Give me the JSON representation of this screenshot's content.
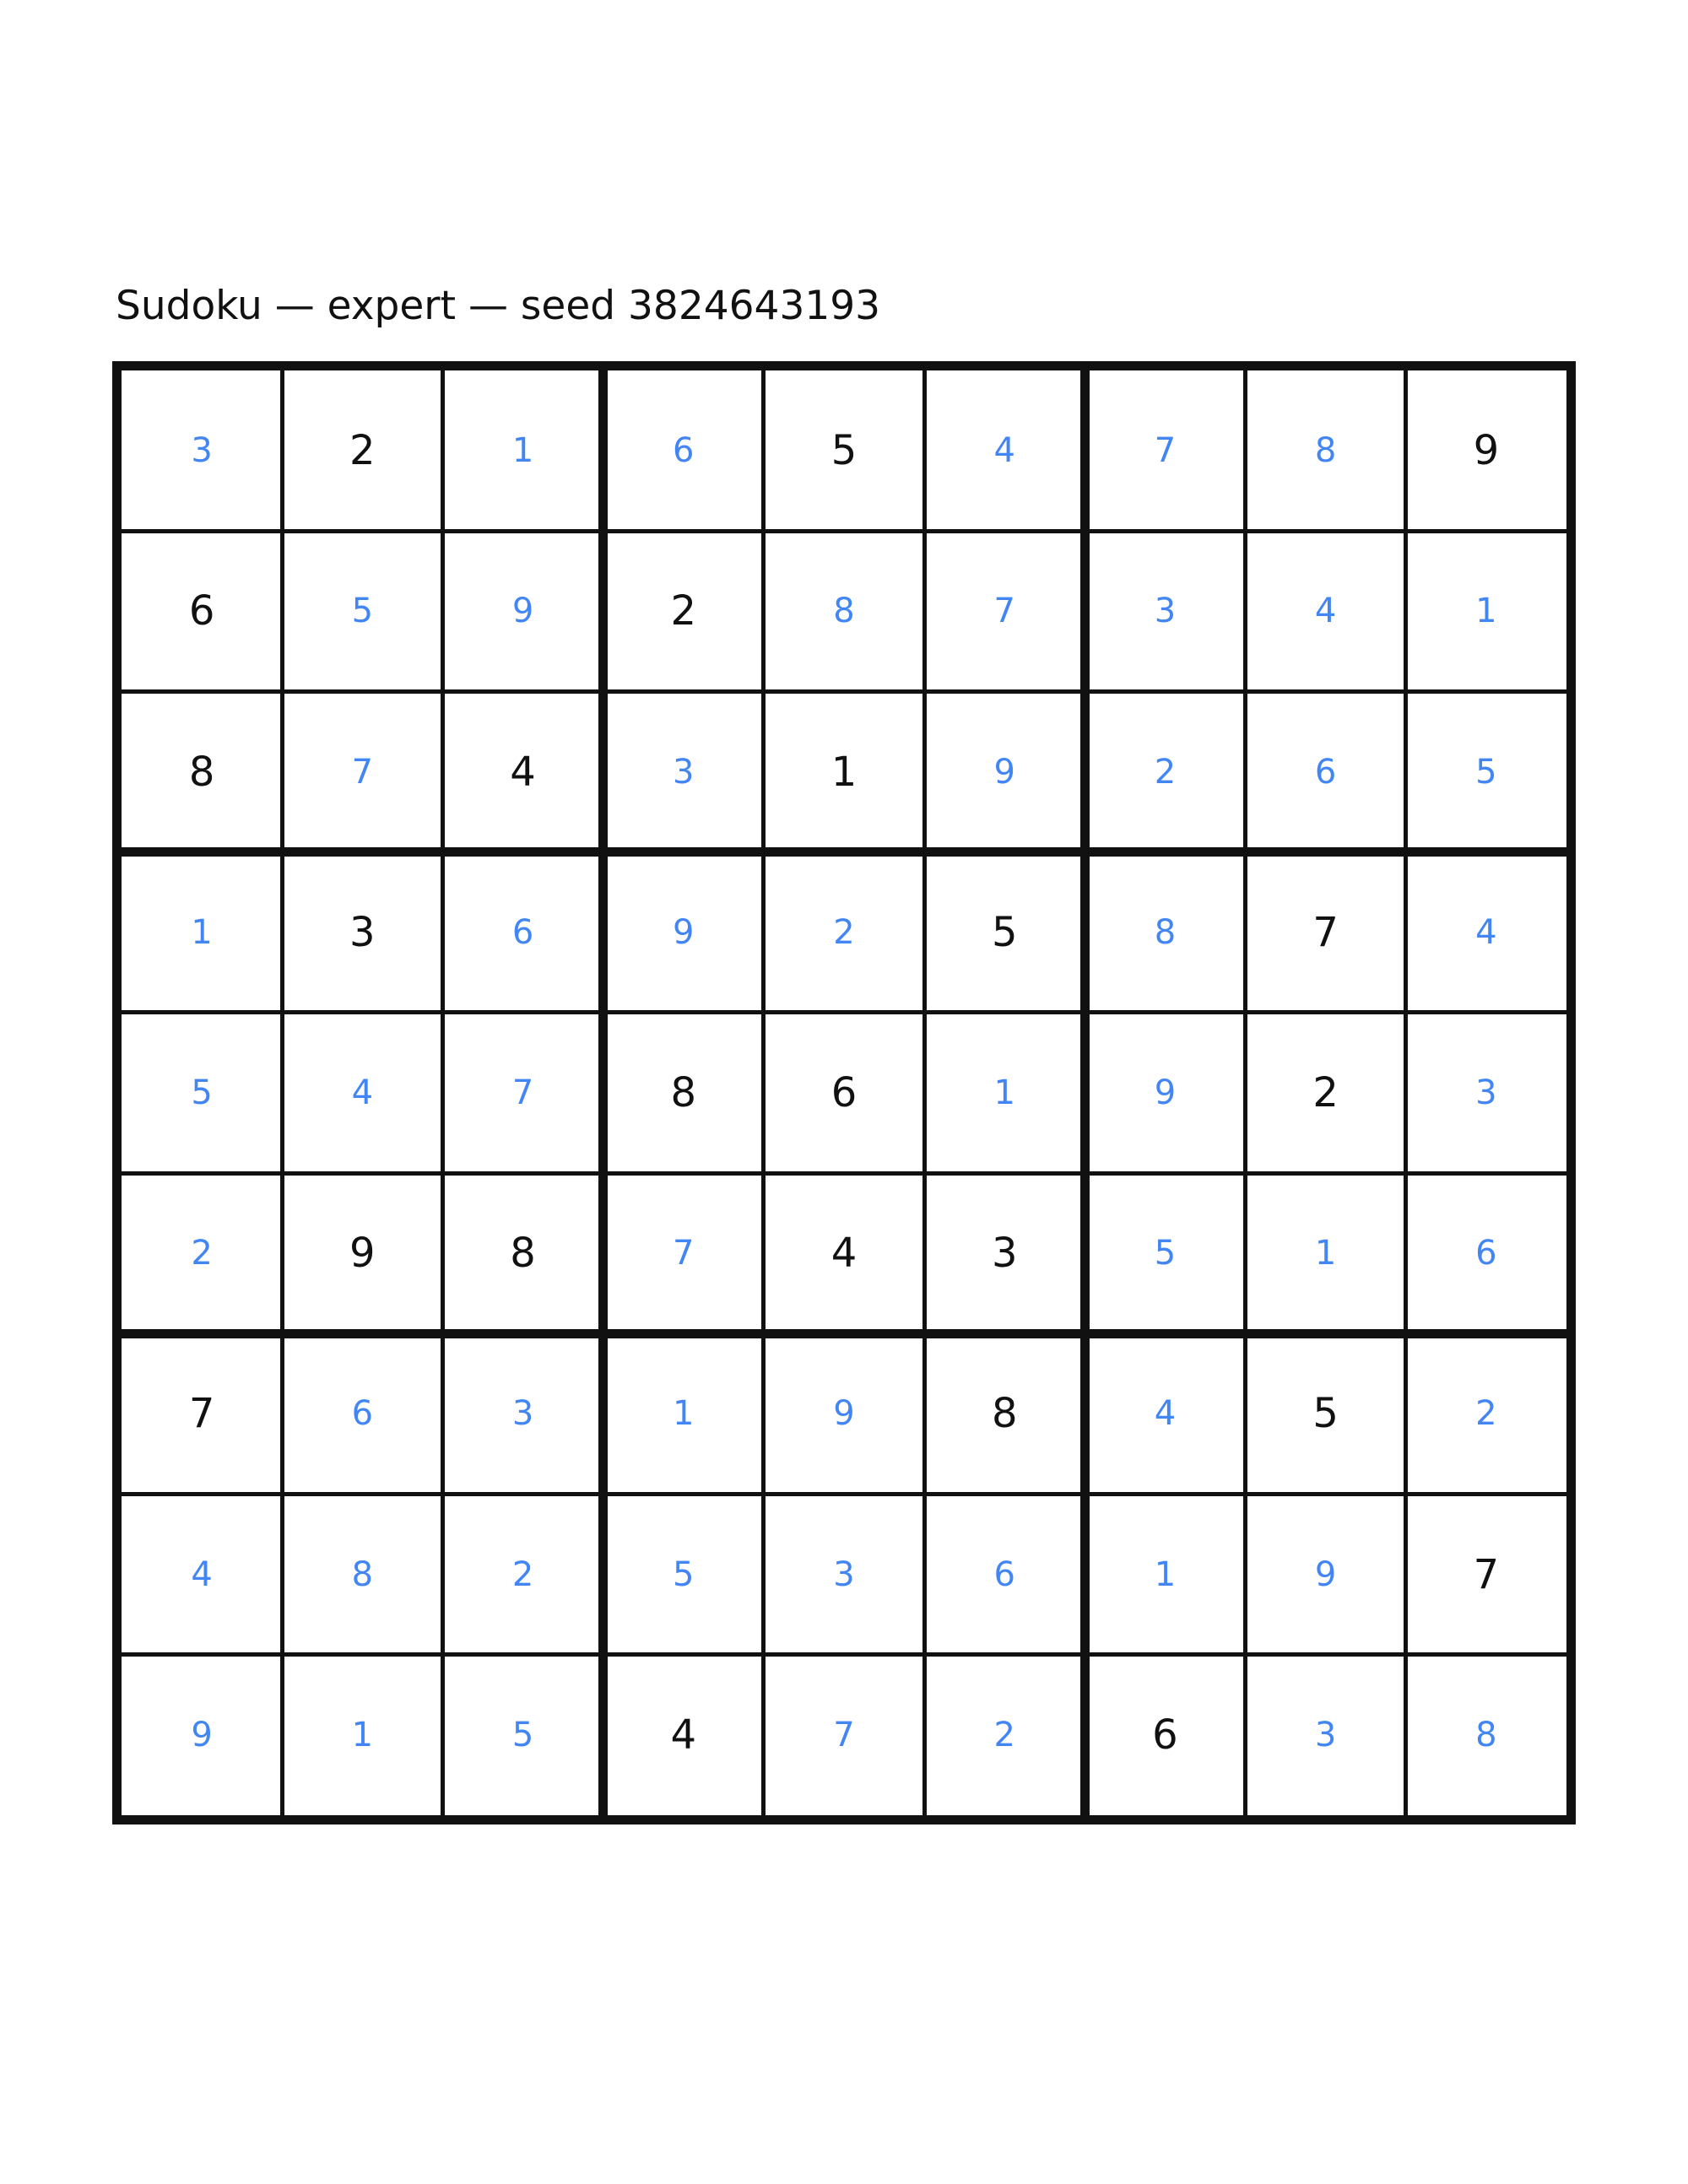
{
  "page": {
    "title": "Sudoku — expert — seed 3824643193"
  },
  "puzzle": {
    "name": "Sudoku",
    "difficulty": "expert",
    "seed": "3824643193"
  },
  "colors": {
    "background": "#ffffff",
    "grid_line": "#111111",
    "given_digit": "#111111",
    "solved_digit": "#4285f4"
  },
  "board": {
    "rows_count": 9,
    "cols_count": 9,
    "rows": [
      {
        "values": [
          "3",
          "2",
          "1",
          "6",
          "5",
          "4",
          "7",
          "8",
          "9"
        ],
        "given": [
          false,
          true,
          false,
          false,
          true,
          false,
          false,
          false,
          true
        ]
      },
      {
        "values": [
          "6",
          "5",
          "9",
          "2",
          "8",
          "7",
          "3",
          "4",
          "1"
        ],
        "given": [
          true,
          false,
          false,
          true,
          false,
          false,
          false,
          false,
          false
        ]
      },
      {
        "values": [
          "8",
          "7",
          "4",
          "3",
          "1",
          "9",
          "2",
          "6",
          "5"
        ],
        "given": [
          true,
          false,
          true,
          false,
          true,
          false,
          false,
          false,
          false
        ]
      },
      {
        "values": [
          "1",
          "3",
          "6",
          "9",
          "2",
          "5",
          "8",
          "7",
          "4"
        ],
        "given": [
          false,
          true,
          false,
          false,
          false,
          true,
          false,
          true,
          false
        ]
      },
      {
        "values": [
          "5",
          "4",
          "7",
          "8",
          "6",
          "1",
          "9",
          "2",
          "3"
        ],
        "given": [
          false,
          false,
          false,
          true,
          true,
          false,
          false,
          true,
          false
        ]
      },
      {
        "values": [
          "2",
          "9",
          "8",
          "7",
          "4",
          "3",
          "5",
          "1",
          "6"
        ],
        "given": [
          false,
          true,
          true,
          false,
          true,
          true,
          false,
          false,
          false
        ]
      },
      {
        "values": [
          "7",
          "6",
          "3",
          "1",
          "9",
          "8",
          "4",
          "5",
          "2"
        ],
        "given": [
          true,
          false,
          false,
          false,
          false,
          true,
          false,
          true,
          false
        ]
      },
      {
        "values": [
          "4",
          "8",
          "2",
          "5",
          "3",
          "6",
          "1",
          "9",
          "7"
        ],
        "given": [
          false,
          false,
          false,
          false,
          false,
          false,
          false,
          false,
          true
        ]
      },
      {
        "values": [
          "9",
          "1",
          "5",
          "4",
          "7",
          "2",
          "6",
          "3",
          "8"
        ],
        "given": [
          false,
          false,
          false,
          true,
          false,
          false,
          true,
          false,
          false
        ]
      }
    ]
  }
}
